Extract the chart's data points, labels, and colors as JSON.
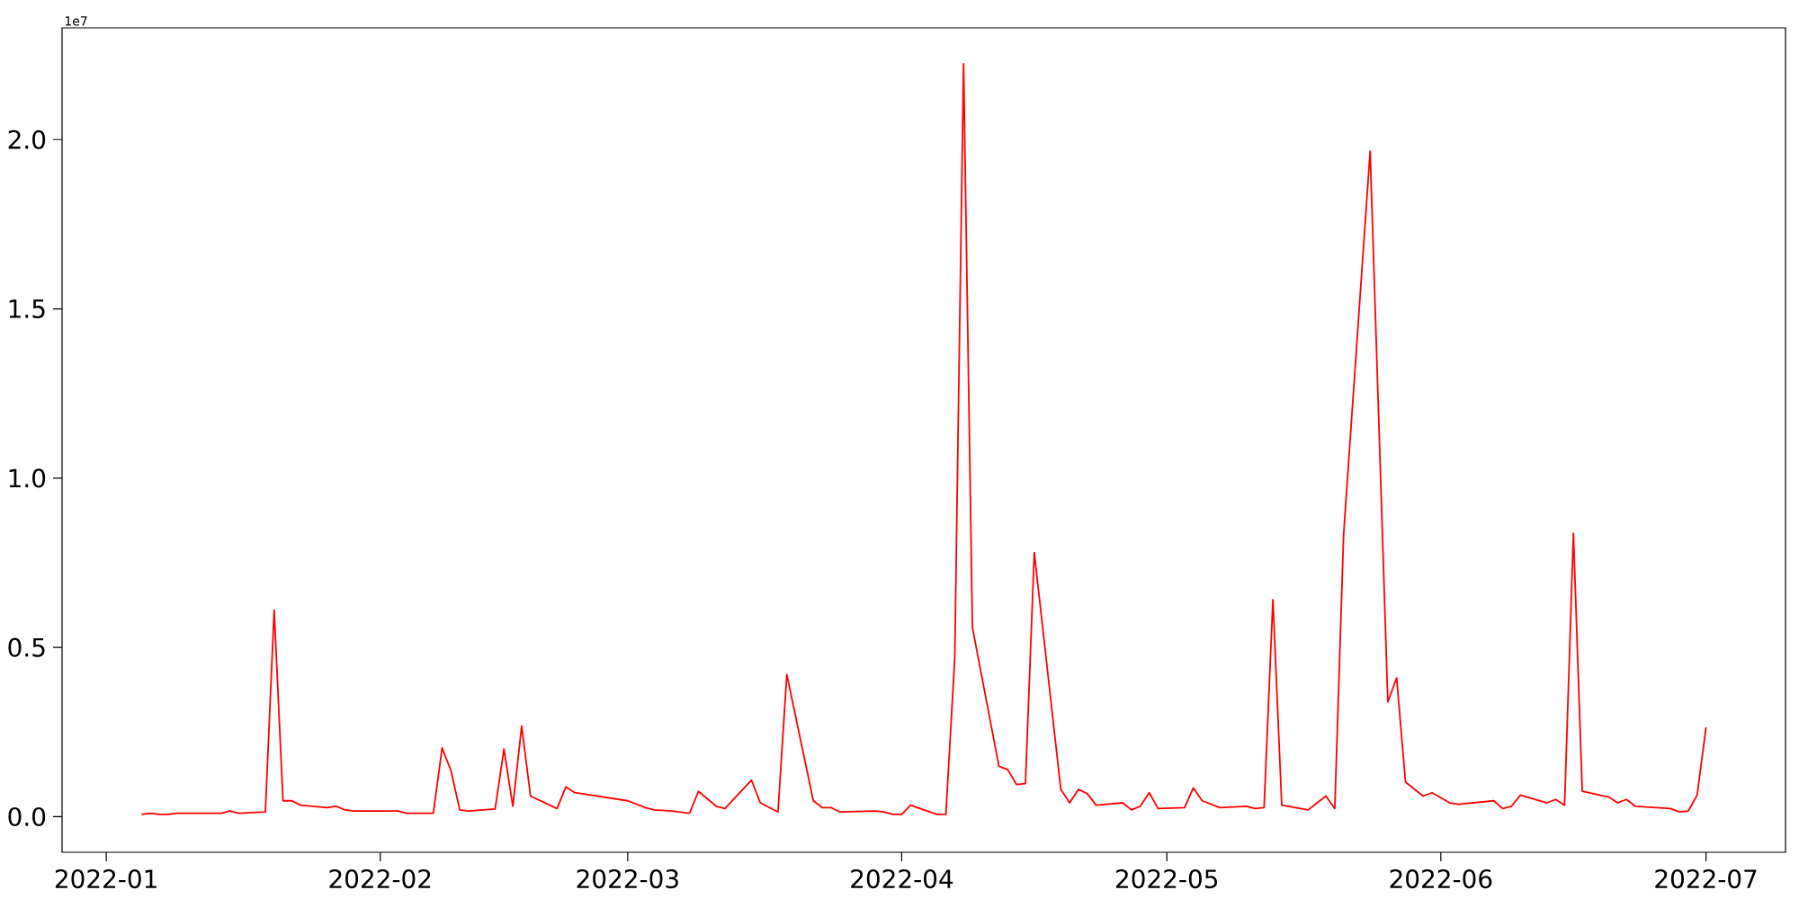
{
  "chart_data": {
    "type": "line",
    "color": "#ff0000",
    "x": [
      "2022-01-05",
      "2022-01-06",
      "2022-01-07",
      "2022-01-08",
      "2022-01-09",
      "2022-01-14",
      "2022-01-15",
      "2022-01-16",
      "2022-01-19",
      "2022-01-20",
      "2022-01-21",
      "2022-01-22",
      "2022-01-23",
      "2022-01-26",
      "2022-01-27",
      "2022-01-28",
      "2022-01-29",
      "2022-01-30",
      "2022-02-03",
      "2022-02-04",
      "2022-02-07",
      "2022-02-08",
      "2022-02-09",
      "2022-02-10",
      "2022-02-11",
      "2022-02-14",
      "2022-02-15",
      "2022-02-16",
      "2022-02-17",
      "2022-02-18",
      "2022-02-21",
      "2022-02-22",
      "2022-02-23",
      "2022-03-01",
      "2022-03-03",
      "2022-03-04",
      "2022-03-06",
      "2022-03-08",
      "2022-03-09",
      "2022-03-11",
      "2022-03-12",
      "2022-03-15",
      "2022-03-16",
      "2022-03-18",
      "2022-03-19",
      "2022-03-22",
      "2022-03-23",
      "2022-03-24",
      "2022-03-25",
      "2022-03-29",
      "2022-03-30",
      "2022-03-31",
      "2022-04-01",
      "2022-04-02",
      "2022-04-05",
      "2022-04-06",
      "2022-04-07",
      "2022-04-08",
      "2022-04-09",
      "2022-04-12",
      "2022-04-13",
      "2022-04-14",
      "2022-04-15",
      "2022-04-16",
      "2022-04-19",
      "2022-04-20",
      "2022-04-21",
      "2022-04-22",
      "2022-04-23",
      "2022-04-26",
      "2022-04-27",
      "2022-04-28",
      "2022-04-29",
      "2022-04-30",
      "2022-05-03",
      "2022-05-04",
      "2022-05-05",
      "2022-05-07",
      "2022-05-10",
      "2022-05-11",
      "2022-05-12",
      "2022-05-13",
      "2022-05-14",
      "2022-05-17",
      "2022-05-18",
      "2022-05-19",
      "2022-05-20",
      "2022-05-21",
      "2022-05-24",
      "2022-05-26",
      "2022-05-27",
      "2022-05-28",
      "2022-05-30",
      "2022-05-31",
      "2022-06-02",
      "2022-06-03",
      "2022-06-07",
      "2022-06-08",
      "2022-06-09",
      "2022-06-10",
      "2022-06-13",
      "2022-06-14",
      "2022-06-15",
      "2022-06-16",
      "2022-06-17",
      "2022-06-20",
      "2022-06-21",
      "2022-06-22",
      "2022-06-23",
      "2022-06-27",
      "2022-06-28",
      "2022-06-29",
      "2022-06-30",
      "2022-07-01"
    ],
    "values": [
      0.007,
      0.01,
      0.007,
      0.007,
      0.01,
      0.01,
      0.017,
      0.01,
      0.014,
      0.61,
      0.047,
      0.047,
      0.034,
      0.027,
      0.031,
      0.02,
      0.017,
      0.017,
      0.017,
      0.01,
      0.01,
      0.203,
      0.136,
      0.02,
      0.017,
      0.023,
      0.2,
      0.031,
      0.268,
      0.061,
      0.024,
      0.088,
      0.071,
      0.047,
      0.027,
      0.02,
      0.017,
      0.01,
      0.075,
      0.031,
      0.024,
      0.108,
      0.041,
      0.014,
      0.42,
      0.047,
      0.027,
      0.027,
      0.014,
      0.017,
      0.014,
      0.007,
      0.007,
      0.034,
      0.007,
      0.007,
      0.468,
      2.224,
      0.559,
      0.149,
      0.139,
      0.095,
      0.098,
      0.78,
      0.081,
      0.041,
      0.081,
      0.068,
      0.034,
      0.041,
      0.02,
      0.031,
      0.071,
      0.024,
      0.027,
      0.085,
      0.047,
      0.027,
      0.031,
      0.024,
      0.027,
      0.641,
      0.034,
      0.02,
      0.041,
      0.061,
      0.024,
      0.834,
      1.966,
      0.339,
      0.41,
      0.102,
      0.061,
      0.071,
      0.041,
      0.037,
      0.047,
      0.024,
      0.031,
      0.064,
      0.041,
      0.051,
      0.034,
      0.837,
      0.075,
      0.058,
      0.041,
      0.051,
      0.031,
      0.024,
      0.014,
      0.017,
      0.064,
      0.264
    ],
    "xlim": [
      "2021-12-27",
      "2022-07-10"
    ],
    "xticks": [
      "2022-01",
      "2022-02",
      "2022-03",
      "2022-04",
      "2022-05",
      "2022-06",
      "2022-07"
    ],
    "ylim": [
      -0.105,
      2.33
    ],
    "yticks": [
      {
        "value": 0,
        "label": "0.0"
      },
      {
        "value": 0.5,
        "label": "0.5"
      },
      {
        "value": 1.0,
        "label": "1.0"
      },
      {
        "value": 1.5,
        "label": "1.5"
      },
      {
        "value": 2.0,
        "label": "2.0"
      }
    ],
    "annotations": [
      "1e7"
    ]
  }
}
